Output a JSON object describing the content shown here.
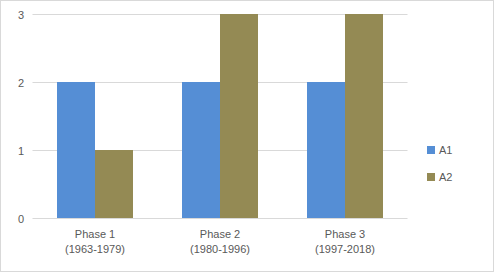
{
  "chart_data": {
    "type": "bar",
    "categories": [
      "Phase 1\n(1963-1979)",
      "Phase 2\n(1980-1996)",
      "Phase 3\n(1997-2018)"
    ],
    "series": [
      {
        "name": "A1",
        "color": "#558ed5",
        "values": [
          2,
          2,
          2
        ]
      },
      {
        "name": "A2",
        "color": "#948a54",
        "values": [
          1,
          3,
          3
        ]
      }
    ],
    "ylim": [
      0,
      3
    ],
    "yticks": [
      0,
      1,
      2,
      3
    ],
    "grid": true,
    "legend": "right"
  }
}
